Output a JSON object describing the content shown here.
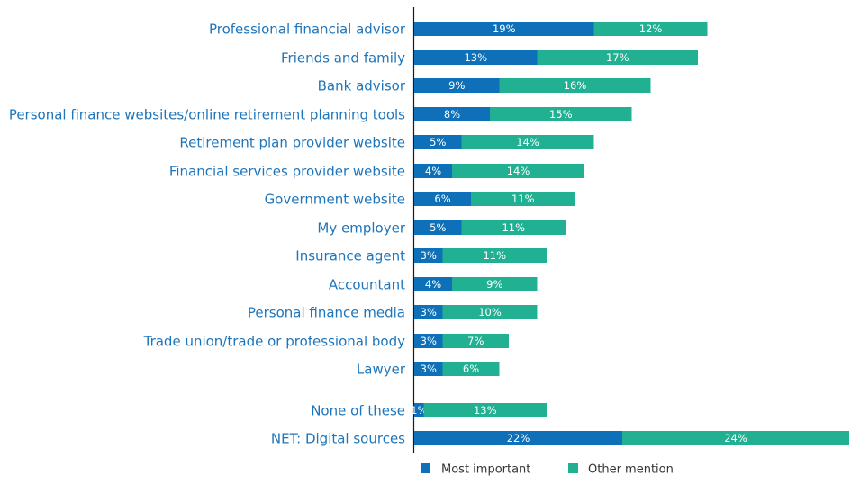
{
  "chart_data": {
    "type": "bar",
    "orientation": "horizontal",
    "stacked": true,
    "categories": [
      "Professional financial advisor",
      "Friends and family",
      "Bank advisor",
      "Personal finance websites/online retirement planning tools",
      "Retirement plan provider website",
      "Financial services provider website",
      "Government website",
      "My employer",
      "Insurance agent",
      "Accountant",
      "Personal finance media",
      "Trade union/trade or professional body",
      "Lawyer",
      "None of these",
      "NET: Digital sources"
    ],
    "series": [
      {
        "name": "Most important",
        "color": "#0d70b8",
        "values": [
          19,
          13,
          9,
          8,
          5,
          4,
          6,
          5,
          3,
          4,
          3,
          3,
          3,
          1,
          22
        ]
      },
      {
        "name": "Other mention",
        "color": "#21b092",
        "values": [
          12,
          17,
          16,
          15,
          14,
          14,
          11,
          11,
          11,
          9,
          10,
          7,
          6,
          13,
          24
        ]
      }
    ],
    "value_suffix": "%",
    "legend_position": "bottom",
    "grid": false,
    "xlim": [
      0,
      46
    ]
  }
}
